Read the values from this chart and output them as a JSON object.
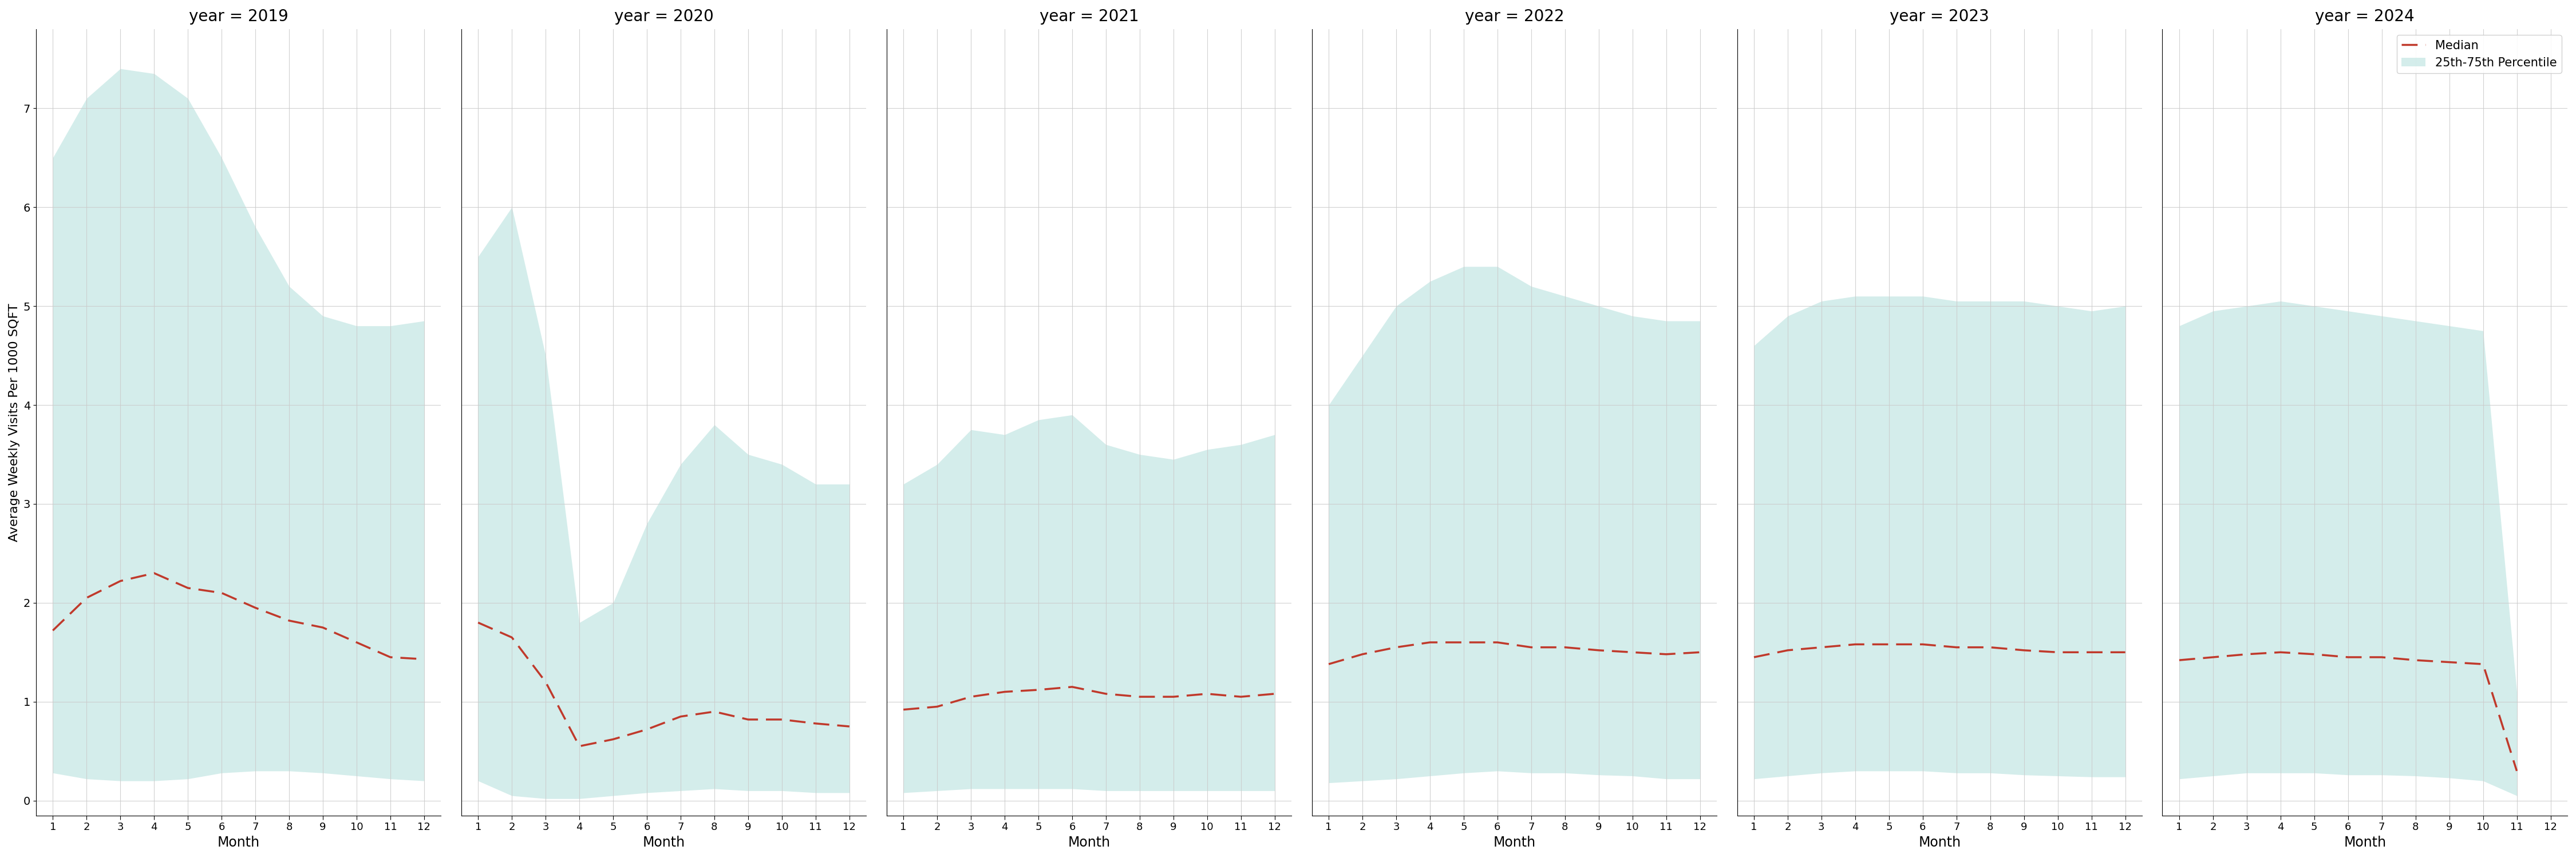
{
  "years": [
    2019,
    2020,
    2021,
    2022,
    2023,
    2024
  ],
  "months": [
    1,
    2,
    3,
    4,
    5,
    6,
    7,
    8,
    9,
    10,
    11,
    12
  ],
  "median": {
    "2019": [
      1.72,
      2.05,
      2.22,
      2.3,
      2.15,
      2.1,
      1.95,
      1.82,
      1.75,
      1.6,
      1.45,
      1.43
    ],
    "2020": [
      1.8,
      1.65,
      1.2,
      0.55,
      0.62,
      0.72,
      0.85,
      0.9,
      0.82,
      0.82,
      0.78,
      0.75
    ],
    "2021": [
      0.92,
      0.95,
      1.05,
      1.1,
      1.12,
      1.15,
      1.08,
      1.05,
      1.05,
      1.08,
      1.05,
      1.08
    ],
    "2022": [
      1.38,
      1.48,
      1.55,
      1.6,
      1.6,
      1.6,
      1.55,
      1.55,
      1.52,
      1.5,
      1.48,
      1.5
    ],
    "2023": [
      1.45,
      1.52,
      1.55,
      1.58,
      1.58,
      1.58,
      1.55,
      1.55,
      1.52,
      1.5,
      1.5,
      1.5
    ],
    "2024": [
      1.42,
      1.45,
      1.48,
      1.5,
      1.48,
      1.45,
      1.45,
      1.42,
      1.4,
      1.38,
      0.3,
      null
    ]
  },
  "q25": {
    "2019": [
      0.28,
      0.22,
      0.2,
      0.2,
      0.22,
      0.28,
      0.3,
      0.3,
      0.28,
      0.25,
      0.22,
      0.2
    ],
    "2020": [
      0.2,
      0.05,
      0.02,
      0.02,
      0.05,
      0.08,
      0.1,
      0.12,
      0.1,
      0.1,
      0.08,
      0.08
    ],
    "2021": [
      0.08,
      0.1,
      0.12,
      0.12,
      0.12,
      0.12,
      0.1,
      0.1,
      0.1,
      0.1,
      0.1,
      0.1
    ],
    "2022": [
      0.18,
      0.2,
      0.22,
      0.25,
      0.28,
      0.3,
      0.28,
      0.28,
      0.26,
      0.25,
      0.22,
      0.22
    ],
    "2023": [
      0.22,
      0.25,
      0.28,
      0.3,
      0.3,
      0.3,
      0.28,
      0.28,
      0.26,
      0.25,
      0.24,
      0.24
    ],
    "2024": [
      0.22,
      0.25,
      0.28,
      0.28,
      0.28,
      0.26,
      0.26,
      0.25,
      0.23,
      0.2,
      0.05,
      null
    ]
  },
  "q75": {
    "2019": [
      6.5,
      7.1,
      7.4,
      7.35,
      7.1,
      6.5,
      5.8,
      5.2,
      4.9,
      4.8,
      4.8,
      4.85
    ],
    "2020": [
      5.5,
      6.0,
      4.5,
      1.8,
      2.0,
      2.8,
      3.4,
      3.8,
      3.5,
      3.4,
      3.2,
      3.2
    ],
    "2021": [
      3.2,
      3.4,
      3.75,
      3.7,
      3.85,
      3.9,
      3.6,
      3.5,
      3.45,
      3.55,
      3.6,
      3.7
    ],
    "2022": [
      4.0,
      4.5,
      5.0,
      5.25,
      5.4,
      5.4,
      5.2,
      5.1,
      5.0,
      4.9,
      4.85,
      4.85
    ],
    "2023": [
      4.6,
      4.9,
      5.05,
      5.1,
      5.1,
      5.1,
      5.05,
      5.05,
      5.05,
      5.0,
      4.95,
      5.0
    ],
    "2024": [
      4.8,
      4.95,
      5.0,
      5.05,
      5.0,
      4.95,
      4.9,
      4.85,
      4.8,
      4.75,
      1.1,
      null
    ]
  },
  "fill_color": "#b2dfdb",
  "fill_alpha": 0.55,
  "line_color": "#c0392b",
  "ylabel": "Average Weekly Visits Per 1000 SQFT",
  "xlabel": "Month",
  "yticks": [
    0,
    1,
    2,
    3,
    4,
    5,
    6,
    7
  ],
  "xticks": [
    1,
    2,
    3,
    4,
    5,
    6,
    7,
    8,
    9,
    10,
    11,
    12
  ],
  "ylim": [
    -0.15,
    7.8
  ],
  "legend_median_label": "Median",
  "legend_band_label": "25th-75th Percentile",
  "background_color": "#ffffff",
  "grid_color": "#cccccc"
}
